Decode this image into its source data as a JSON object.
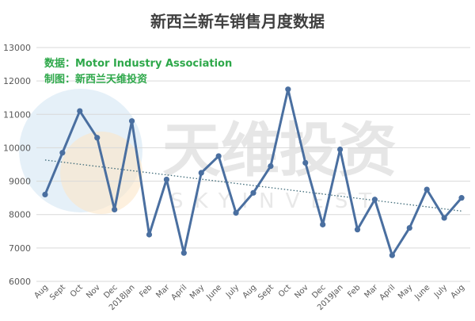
{
  "colors": {
    "series": "#4a6fa0",
    "trendline": "#3e6a78",
    "grid": "#d9d9d9",
    "note": "#2ea84a",
    "title": "#404040",
    "watermark_circle_blue": "#cfe3f3",
    "watermark_circle_orange": "#fbe6c8"
  },
  "chart_data": {
    "type": "line",
    "title": "新西兰新车销售月度数据",
    "annotations": [
      "数据：Motor Industry Association",
      "制图：新西兰天维投资"
    ],
    "watermark": {
      "text": "天维投资",
      "sub": "SKYINVEST"
    },
    "xlabel": "",
    "ylabel": "",
    "ylim": [
      6000,
      13000
    ],
    "yticks": [
      6000,
      7000,
      8000,
      9000,
      10000,
      11000,
      12000,
      13000
    ],
    "grid": true,
    "legend": "none",
    "categories": [
      "Aug",
      "Sept",
      "Oct",
      "Nov",
      "Dec",
      "2018Jan",
      "Feb",
      "Mar",
      "April",
      "May",
      "June",
      "July",
      "Aug",
      "Sept",
      "Oct",
      "Nov",
      "Dec",
      "2019Jan",
      "Feb",
      "Mar",
      "April",
      "May",
      "June",
      "July",
      "Aug"
    ],
    "series": [
      {
        "values": [
          8600,
          9850,
          11100,
          10300,
          8150,
          10800,
          7400,
          9050,
          6850,
          9250,
          9750,
          8050,
          8650,
          9450,
          11750,
          9550,
          7700,
          9950,
          7550,
          8450,
          6780,
          7600,
          8750,
          7900,
          8500
        ],
        "markers": true
      }
    ],
    "trendline": {
      "type": "linear",
      "style": "dotted"
    }
  }
}
